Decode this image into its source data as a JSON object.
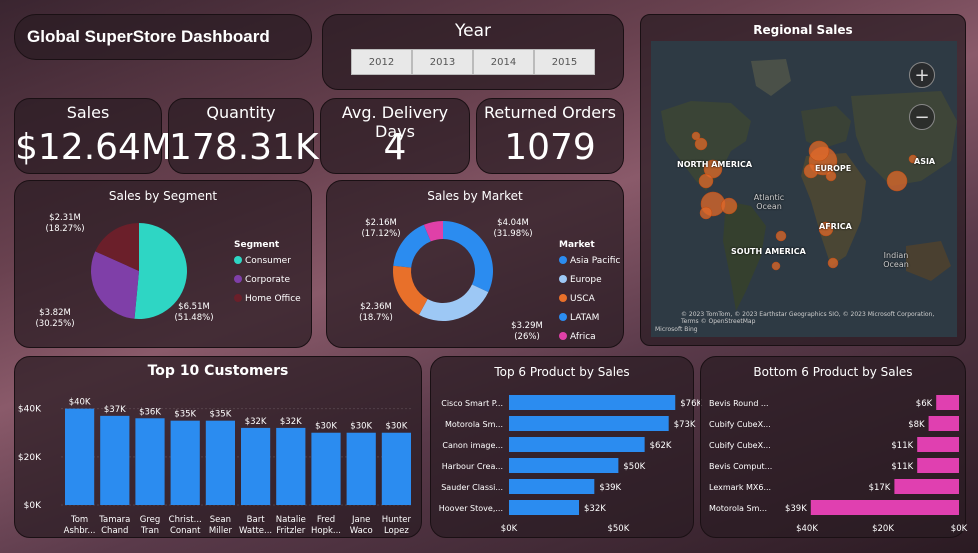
{
  "dashboard": {
    "title": "Global SuperStore Dashboard"
  },
  "year_slicer": {
    "title": "Year",
    "options": [
      "2012",
      "2013",
      "2014",
      "2015"
    ]
  },
  "kpis": {
    "sales": {
      "label": "Sales",
      "value": "$12.64M"
    },
    "quantity": {
      "label": "Quantity",
      "value": "178.31K"
    },
    "delivery": {
      "label": "Avg. Delivery Days",
      "value": "4"
    },
    "returned": {
      "label": "Returned Orders",
      "value": "1079"
    }
  },
  "map": {
    "title": "Regional Sales",
    "zoom_in": "+",
    "zoom_out": "−",
    "labels": {
      "north_america": "NORTH AMERICA",
      "europe": "EUROPE",
      "asia": "ASIA",
      "africa": "AFRICA",
      "south_america": "SOUTH AMERICA",
      "atlantic": "Atlantic Ocean",
      "indian": "Indian Ocean"
    },
    "attribution": "© 2023 TomTom, © 2023 Earthstar Geographics SIO, © 2023 Microsoft Corporation, Terms © OpenStreetMap",
    "bing_logo": "Microsoft Bing"
  },
  "colors": {
    "consumer": "#2ed6c4",
    "corporate": "#7f3fa8",
    "home_office": "#6b1f2a",
    "asia_pacific": "#2b8cf0",
    "europe": "#9dc8f5",
    "usca": "#e8702a",
    "latam": "#2b8cf0",
    "africa": "#e040a8",
    "bar_blue": "#2b8cf0",
    "bar_pink": "#e040b0"
  },
  "chart_data": [
    {
      "id": "segment",
      "type": "pie",
      "title": "Sales by Segment",
      "legend_title": "Segment",
      "legend_position": "right",
      "slices": [
        {
          "name": "Consumer",
          "value": 6.51,
          "label": "$6.51M (51.48%)",
          "color": "#2ed6c4"
        },
        {
          "name": "Corporate",
          "value": 3.82,
          "label": "$3.82M (30.25%)",
          "color": "#7f3fa8"
        },
        {
          "name": "Home Office",
          "value": 2.31,
          "label": "$2.31M (18.27%)",
          "color": "#6b1f2a"
        }
      ]
    },
    {
      "id": "market",
      "type": "pie",
      "title": "Sales by Market",
      "legend_title": "Market",
      "legend_position": "right",
      "slices": [
        {
          "name": "Asia Pacific",
          "value": 4.04,
          "label": "$4.04M (31.98%)",
          "color": "#2b8cf0"
        },
        {
          "name": "Europe",
          "value": 3.29,
          "label": "$3.29M (26%)",
          "color": "#9dc8f5"
        },
        {
          "name": "USCA",
          "value": 2.36,
          "label": "$2.36M (18.7%)",
          "color": "#e8702a"
        },
        {
          "name": "LATAM",
          "value": 2.16,
          "label": "$2.16M (17.12%)",
          "color": "#2b8cf0"
        },
        {
          "name": "Africa",
          "value": 0.79,
          "label": "",
          "color": "#e040a8"
        }
      ]
    },
    {
      "id": "customers",
      "type": "bar",
      "title": "Top 10 Customers",
      "categories": [
        "Tom Ashbr...",
        "Tamara Chand",
        "Greg Tran",
        "Christ... Conant",
        "Sean Miller",
        "Bart Watte...",
        "Natalie Fritzler",
        "Fred Hopk...",
        "Jane Waco",
        "Hunter Lopez"
      ],
      "values": [
        40,
        37,
        36,
        35,
        35,
        32,
        32,
        30,
        30,
        30
      ],
      "data_labels": [
        "$40K",
        "$37K",
        "$36K",
        "$35K",
        "$35K",
        "$32K",
        "$32K",
        "$30K",
        "$30K",
        "$30K"
      ],
      "yticks": [
        "$0K",
        "$20K",
        "$40K"
      ],
      "ylim": [
        0,
        44
      ]
    },
    {
      "id": "top6",
      "type": "bar",
      "orientation": "horizontal",
      "title": "Top 6 Product by Sales",
      "categories": [
        "Cisco Smart P...",
        "Motorola Sm...",
        "Canon image...",
        "Harbour Crea...",
        "Sauder Classi...",
        "Hoover Stove,..."
      ],
      "values": [
        76,
        73,
        62,
        50,
        39,
        32
      ],
      "data_labels": [
        "$76K",
        "$73K",
        "$62K",
        "$50K",
        "$39K",
        "$32K"
      ],
      "xticks": [
        "$0K",
        "$50K"
      ],
      "xlim": [
        0,
        80
      ]
    },
    {
      "id": "bottom6",
      "type": "bar",
      "orientation": "horizontal-reversed",
      "title": "Bottom 6 Product by Sales",
      "categories": [
        "Bevis Round ...",
        "Cubify CubeX...",
        "Cubify CubeX...",
        "Bevis Comput...",
        "Lexmark MX6...",
        "Motorola Sm..."
      ],
      "values": [
        6,
        8,
        11,
        11,
        17,
        39
      ],
      "data_labels": [
        "$6K",
        "$8K",
        "$11K",
        "$11K",
        "$17K",
        "$39K"
      ],
      "xticks": [
        "$40K",
        "$20K",
        "$0K"
      ],
      "xlim": [
        0,
        40
      ]
    }
  ]
}
